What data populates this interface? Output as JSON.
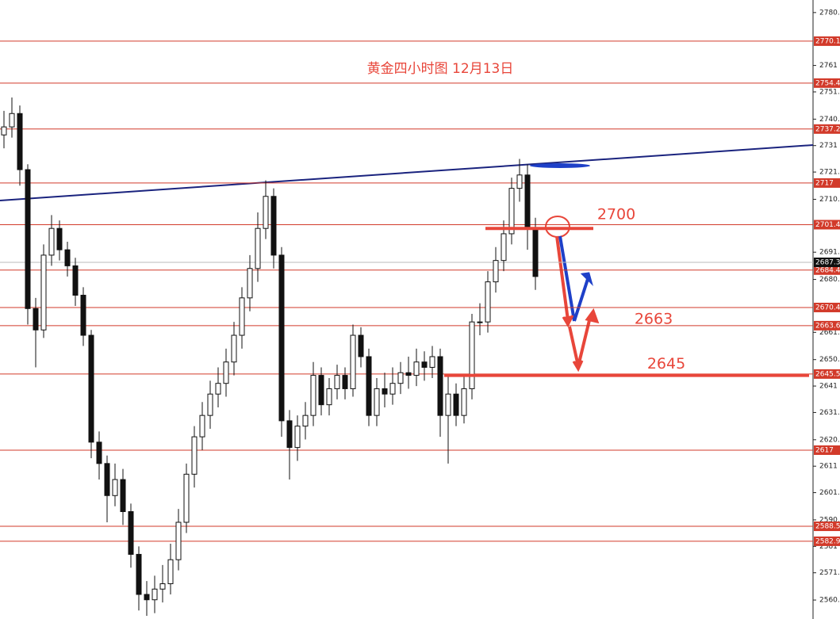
{
  "chart_data": {
    "type": "candlestick",
    "title": "黄金四小时图 12月13日",
    "ylim": [
      2553.8,
      2785.5
    ],
    "yticks": [
      2780.8,
      2761.0,
      2751.1,
      2740.9,
      2731.0,
      2721.1,
      2710.9,
      2691.1,
      2680.9,
      2661.1,
      2650.9,
      2641.0,
      2631.1,
      2620.9,
      2611.0,
      2601.1,
      2590.9,
      2581.0,
      2571.1,
      2560.9
    ],
    "levels": [
      2770.1,
      2754.4,
      2737.2,
      2717.0,
      2701.4,
      2684.4,
      2670.4,
      2663.6,
      2645.5,
      2617.0,
      2588.5,
      2582.9
    ],
    "level_color": "#d23a2a",
    "current_price": 2687.3,
    "marked_levels": [
      2700,
      2663,
      2645
    ],
    "marked_color": "#e8463a",
    "open": [
      2735,
      2738,
      2743,
      2722,
      2670,
      2662,
      2690,
      2700,
      2692,
      2686,
      2675,
      2660,
      2620,
      2612,
      2600,
      2606,
      2594,
      2578,
      2563,
      2561,
      2565,
      2567,
      2576,
      2590,
      2608,
      2622,
      2630,
      2638,
      2642,
      2650,
      2660,
      2674,
      2685,
      2700,
      2712,
      2690,
      2628,
      2618,
      2626,
      2630,
      2645,
      2634,
      2640,
      2645,
      2640,
      2660,
      2652,
      2630,
      2640,
      2638,
      2642,
      2646,
      2645,
      2650,
      2648,
      2652,
      2630,
      2638,
      2630,
      2640,
      2665,
      2665,
      2680,
      2688,
      2698,
      2715,
      2720,
      2700
    ],
    "high": [
      2744,
      2749,
      2746,
      2724,
      2674,
      2694,
      2705,
      2703,
      2695,
      2689,
      2678,
      2662,
      2624,
      2615,
      2612,
      2610,
      2597,
      2581,
      2568,
      2570,
      2574,
      2582,
      2595,
      2612,
      2626,
      2635,
      2643,
      2648,
      2655,
      2665,
      2678,
      2690,
      2706,
      2718,
      2715,
      2693,
      2632,
      2630,
      2635,
      2650,
      2648,
      2644,
      2649,
      2648,
      2664,
      2663,
      2655,
      2644,
      2646,
      2648,
      2650,
      2652,
      2655,
      2654,
      2656,
      2655,
      2645,
      2642,
      2645,
      2668,
      2672,
      2684,
      2693,
      2703,
      2719,
      2726,
      2724,
      2704
    ],
    "low": [
      2730,
      2734,
      2716,
      2664,
      2648,
      2659,
      2686,
      2688,
      2682,
      2671,
      2656,
      2614,
      2606,
      2590,
      2596,
      2589,
      2573,
      2557,
      2555,
      2556,
      2560,
      2563,
      2572,
      2586,
      2603,
      2617,
      2625,
      2633,
      2637,
      2645,
      2655,
      2669,
      2680,
      2696,
      2685,
      2622,
      2606,
      2613,
      2621,
      2626,
      2630,
      2630,
      2636,
      2636,
      2637,
      2648,
      2626,
      2626,
      2633,
      2634,
      2638,
      2640,
      2641,
      2643,
      2644,
      2622,
      2612,
      2626,
      2627,
      2636,
      2660,
      2661,
      2676,
      2684,
      2694,
      2710,
      2692,
      2677
    ],
    "close": [
      2738,
      2743,
      2722,
      2670,
      2662,
      2690,
      2700,
      2692,
      2686,
      2675,
      2660,
      2620,
      2612,
      2600,
      2606,
      2594,
      2578,
      2563,
      2561,
      2565,
      2567,
      2576,
      2590,
      2608,
      2622,
      2630,
      2638,
      2642,
      2650,
      2660,
      2674,
      2685,
      2700,
      2712,
      2690,
      2628,
      2618,
      2626,
      2630,
      2645,
      2634,
      2640,
      2645,
      2640,
      2660,
      2652,
      2630,
      2640,
      2638,
      2642,
      2646,
      2645,
      2650,
      2648,
      2652,
      2630,
      2638,
      2630,
      2640,
      2665,
      2665,
      2680,
      2688,
      2698,
      2715,
      2720,
      2700,
      2682
    ]
  }
}
